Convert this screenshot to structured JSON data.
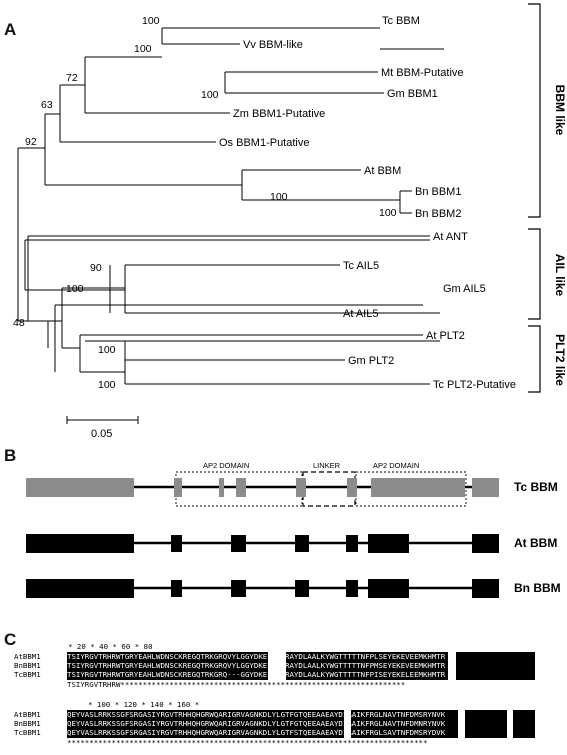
{
  "panel_a": {
    "letter": "A",
    "taxa": [
      "Tc BBM",
      "Vv BBM-like",
      "Mt BBM-Putative",
      "Gm BBM1",
      "Zm BBM1-Putative",
      "Os BBM1-Putative",
      "At BBM",
      "Bn BBM1",
      "Bn BBM2",
      "At ANT",
      "Tc AIL5",
      "Gm AIL5",
      "At AIL5",
      "At PLT2",
      "Gm PLT2",
      "Tc PLT2-Putative"
    ],
    "bootstrap": [
      "100",
      "100",
      "72",
      "100",
      "63",
      "92",
      "100",
      "100",
      "90",
      "100",
      "48",
      "100",
      "100"
    ],
    "groups": [
      "BBM like",
      "AIL like",
      "PLT2 like"
    ],
    "scale_label": "0.05"
  },
  "panel_b": {
    "letter": "B",
    "domain_labels": [
      "AP2 DOMAIN",
      "LINKER",
      "AP2 DOMAIN"
    ],
    "genes": [
      "Tc BBM",
      "At BBM",
      "Bn BBM"
    ],
    "colors": {
      "tc": "#8c8c8c",
      "other": "#000000"
    }
  },
  "panel_c": {
    "letter": "C",
    "block1": {
      "ruler": "*        20         *        40         *        60         *        80",
      "rows": [
        {
          "name": "AtBBM1",
          "seq": "TSIYRGVTRHRWTGRYEAHLWDNSCKREGQTRKGRQVYLGGYDKEEKAARAYDLAALKYWGTTTTTNFPLSEYEKEVEEMKHMTR"
        },
        {
          "name": "BnBBM1",
          "seq": "TSIYRGVTRHRWTGRYEAHLWDNSCKREGQTRKGRQVYLGGYDKEEKAARAYDLAALKYWGTTTTTNFPMSEYEKEVEEMKHMTR"
        },
        {
          "name": "TcBBM1",
          "seq": "TSIYRGVTRHRWTGRYEAHLWDNSCKREGQTRKGRQ---GGYDKEEKAARAYDLAALKYWGTTTTTNFPISEYEKELEEMKHMTR"
        }
      ],
      "consensus": "TSIYRGVTRHRW****************************************************************"
    },
    "block2": {
      "ruler": "*       100         *       120         *       140         *       160         *",
      "rows": [
        {
          "name": "AtBBM1",
          "seq": "QEYVASLRRKSSGFSRGASIYRGVTRHHQHGRWQARIGRVAGNKDLYLGTFGTQEEAAEAYDIAAIKFRGLNAVTNFDMSRYNVK"
        },
        {
          "name": "BnBBM1",
          "seq": "QEYVASLRRKSSGFSRGASIYRGVTRHHQHGRWQARIGRVAGNKDLYLGTFGTQEEAAEAYDIAAIKFRGLNAVTNFDMNRYNVK"
        },
        {
          "name": "TcBBM1",
          "seq": "QEYVASLRRKSSGFSRGASIYRGVTRHHQHGRWQARIGRVAGNKDLYLGTFSTQEEAAEAYDIAAIKFRGLSAVTNFDMSRYDVK"
        }
      ],
      "consensus": "*********************************************************************************"
    }
  }
}
